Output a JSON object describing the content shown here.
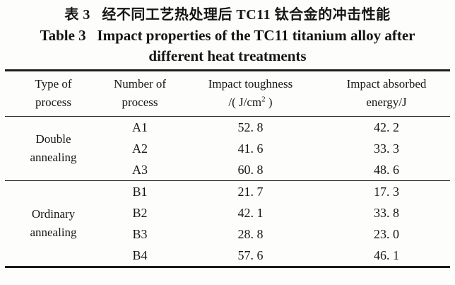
{
  "caption": {
    "zh": "表 3   经不同工艺热处理后 TC11 钛合金的冲击性能",
    "en_line1": "Table 3   Impact properties of the TC11 titanium alloy after",
    "en_line2": "different heat treatments"
  },
  "table": {
    "headers": [
      {
        "line1": "Type of",
        "line2": "process"
      },
      {
        "line1": "Number of",
        "line2": "process"
      },
      {
        "line1": "Impact toughness",
        "unit_prefix": "/( J/cm",
        "unit_sup": "2",
        "unit_suffix": " )"
      },
      {
        "line1": "Impact absorbed",
        "line2": "energy/J"
      }
    ],
    "sections": [
      {
        "type_line1": "Double",
        "type_line2": "annealing",
        "rows": [
          {
            "number": "A1",
            "toughness": "52. 8",
            "energy": "42. 2"
          },
          {
            "number": "A2",
            "toughness": "41. 6",
            "energy": "33. 3"
          },
          {
            "number": "A3",
            "toughness": "60. 8",
            "energy": "48. 6"
          }
        ]
      },
      {
        "type_line1": "Ordinary",
        "type_line2": "annealing",
        "rows": [
          {
            "number": "B1",
            "toughness": "21. 7",
            "energy": "17. 3"
          },
          {
            "number": "B2",
            "toughness": "42. 1",
            "energy": "33. 8"
          },
          {
            "number": "B3",
            "toughness": "28. 8",
            "energy": "23. 0"
          },
          {
            "number": "B4",
            "toughness": "57. 6",
            "energy": "46. 1"
          }
        ]
      }
    ]
  },
  "colors": {
    "background": "#fdfdfb",
    "text": "#161616",
    "rule": "#1c1c1c"
  }
}
